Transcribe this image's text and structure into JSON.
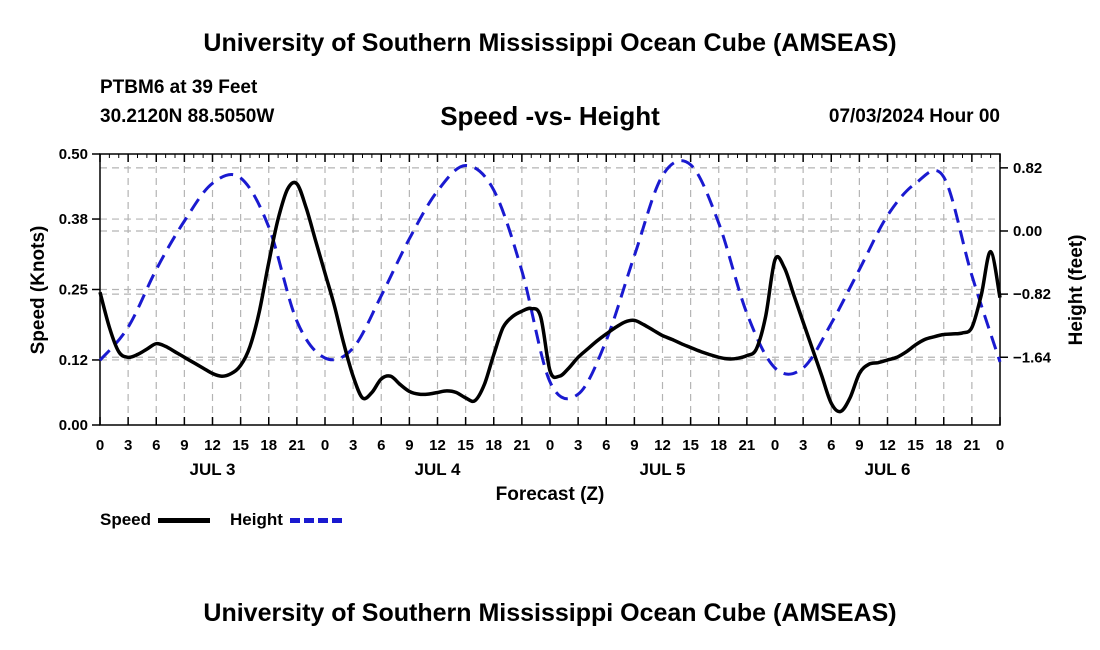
{
  "page": {
    "title": "University of Southern Mississippi Ocean Cube (AMSEAS)",
    "station": "PTBM6 at 39 Feet",
    "coords": "30.2120N  88.5050W",
    "subtitle": "Speed -vs- Height",
    "date": "07/03/2024 Hour 00",
    "bottom_title": "University of Southern Mississippi Ocean Cube (AMSEAS)"
  },
  "chart_data": {
    "type": "line",
    "title": "Speed -vs- Height",
    "xlabel": "Forecast (Z)",
    "ylabel": "Speed (Knots)",
    "y2label": "Height (feet)",
    "xlim": [
      0,
      96
    ],
    "ylim": [
      0,
      0.5
    ],
    "y2lim": [
      -2.52,
      1.0
    ],
    "x_ticks": [
      0,
      3,
      6,
      9,
      12,
      15,
      18,
      21,
      24,
      27,
      30,
      33,
      36,
      39,
      42,
      45,
      48,
      51,
      54,
      57,
      60,
      63,
      66,
      69,
      72,
      75,
      78,
      81,
      84,
      87,
      90,
      93,
      96
    ],
    "x_tick_labels": [
      "0",
      "3",
      "6",
      "9",
      "12",
      "15",
      "18",
      "21",
      "0",
      "3",
      "6",
      "9",
      "12",
      "15",
      "18",
      "21",
      "0",
      "3",
      "6",
      "9",
      "12",
      "15",
      "18",
      "21",
      "0",
      "3",
      "6",
      "9",
      "12",
      "15",
      "18",
      "21",
      "0"
    ],
    "day_labels": [
      {
        "label": "JUL 3",
        "x": 12
      },
      {
        "label": "JUL 4",
        "x": 36
      },
      {
        "label": "JUL 5",
        "x": 60
      },
      {
        "label": "JUL 6",
        "x": 84
      }
    ],
    "y_ticks": [
      0.0,
      0.12,
      0.25,
      0.38,
      0.5
    ],
    "y_tick_labels": [
      "0.00",
      "0.12",
      "0.25",
      "0.38",
      "0.50"
    ],
    "y2_ticks": [
      0.82,
      0.0,
      -0.82,
      -1.64
    ],
    "y2_tick_labels": [
      "0.82",
      "0.00",
      "−0.82",
      "−1.64"
    ],
    "grid": true,
    "series": [
      {
        "name": "Speed",
        "axis": "left",
        "color": "#000000",
        "style": "solid",
        "x": [
          0,
          1,
          2,
          3,
          4,
          5,
          6,
          7,
          8,
          9,
          10,
          11,
          12,
          13,
          14,
          15,
          16,
          17,
          18,
          19,
          20,
          21,
          22,
          23,
          24,
          25,
          26,
          27,
          28,
          29,
          30,
          31,
          32,
          33,
          34,
          35,
          36,
          37,
          38,
          39,
          40,
          41,
          42,
          43,
          44,
          45,
          46,
          47,
          48,
          49,
          50,
          51,
          52,
          53,
          54,
          55,
          56,
          57,
          58,
          59,
          60,
          61,
          62,
          63,
          64,
          65,
          66,
          67,
          68,
          69,
          70,
          71,
          72,
          73,
          74,
          75,
          76,
          77,
          78,
          79,
          80,
          81,
          82,
          83,
          84,
          85,
          86,
          87,
          88,
          89,
          90,
          91,
          92,
          93,
          94,
          95,
          96
        ],
        "values": [
          0.245,
          0.18,
          0.135,
          0.125,
          0.13,
          0.14,
          0.15,
          0.145,
          0.135,
          0.125,
          0.115,
          0.105,
          0.095,
          0.09,
          0.095,
          0.11,
          0.145,
          0.21,
          0.3,
          0.38,
          0.435,
          0.445,
          0.4,
          0.34,
          0.28,
          0.22,
          0.15,
          0.09,
          0.05,
          0.06,
          0.085,
          0.09,
          0.075,
          0.062,
          0.057,
          0.057,
          0.06,
          0.063,
          0.06,
          0.05,
          0.045,
          0.075,
          0.13,
          0.18,
          0.2,
          0.21,
          0.215,
          0.2,
          0.1,
          0.09,
          0.105,
          0.125,
          0.14,
          0.155,
          0.168,
          0.18,
          0.19,
          0.193,
          0.185,
          0.175,
          0.165,
          0.158,
          0.15,
          0.143,
          0.136,
          0.13,
          0.125,
          0.122,
          0.123,
          0.128,
          0.14,
          0.2,
          0.305,
          0.29,
          0.24,
          0.19,
          0.14,
          0.09,
          0.04,
          0.025,
          0.05,
          0.095,
          0.112,
          0.115,
          0.12,
          0.125,
          0.135,
          0.148,
          0.158,
          0.163,
          0.167,
          0.168,
          0.17,
          0.18,
          0.24,
          0.32,
          0.235
        ]
      },
      {
        "name": "Height",
        "axis": "right",
        "color": "#1a1ad0",
        "style": "dashed",
        "x": [
          0,
          3,
          6,
          9,
          12,
          15,
          18,
          21,
          24,
          27,
          30,
          33,
          36,
          39,
          42,
          45,
          48,
          51,
          54,
          57,
          60,
          63,
          66,
          69,
          72,
          75,
          78,
          81,
          84,
          87,
          90,
          93,
          96
        ],
        "values": [
          -1.68,
          -1.25,
          -0.5,
          0.13,
          0.62,
          0.69,
          0.05,
          -1.17,
          -1.65,
          -1.52,
          -0.84,
          -0.1,
          0.52,
          0.85,
          0.53,
          -0.52,
          -1.96,
          -2.12,
          -1.42,
          -0.32,
          0.72,
          0.86,
          0.1,
          -1.07,
          -1.78,
          -1.78,
          -1.2,
          -0.5,
          0.2,
          0.62,
          0.7,
          -0.58,
          -1.7
        ]
      }
    ],
    "legend": [
      {
        "label": "Speed",
        "color": "#000000",
        "style": "solid"
      },
      {
        "label": "Height",
        "color": "#1a1ad0",
        "style": "dashed"
      }
    ]
  }
}
